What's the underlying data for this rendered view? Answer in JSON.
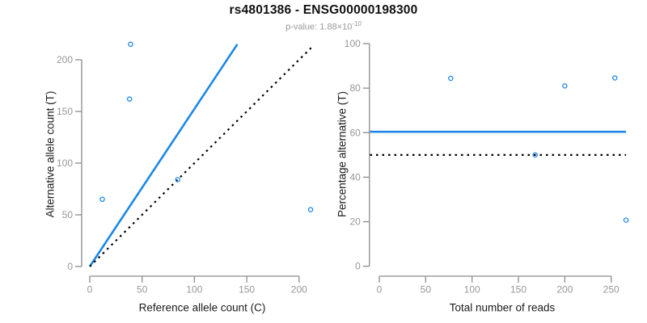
{
  "figure": {
    "title": "rs4801386 - ENSG00000198300",
    "pvalue_label": "p-value: ",
    "pvalue_value": "1.88×10",
    "pvalue_exponent": "-10"
  },
  "colors": {
    "accent_blue": "#1E87E5",
    "axis_gray": "#8C8C8C",
    "tick_label_gray": "#979797",
    "title_black": "#111111",
    "subtitle_gray": "#999999"
  },
  "chart_data": [
    {
      "type": "scatter",
      "panel": "left",
      "xlabel": "Reference allele count (C)",
      "ylabel": "Alternative allele count (T)",
      "xticks": [
        0,
        50,
        100,
        150,
        200
      ],
      "yticks": [
        0,
        50,
        100,
        150,
        200
      ],
      "xlim": [
        0,
        215
      ],
      "ylim": [
        0,
        215
      ],
      "grid": false,
      "legend": false,
      "marker": "open-circle",
      "points": [
        [
          12,
          65
        ],
        [
          38,
          162
        ],
        [
          39,
          215
        ],
        [
          84,
          84
        ],
        [
          211,
          55
        ]
      ],
      "lines": [
        {
          "name": "fitted-ratio-line",
          "style": "solid",
          "color": "#1E87E5",
          "from": [
            0,
            0
          ],
          "to": [
            141,
            215
          ]
        },
        {
          "name": "identity-line",
          "style": "dotted",
          "color": "#000000",
          "from": [
            0,
            0
          ],
          "to": [
            214,
            214
          ]
        }
      ]
    },
    {
      "type": "scatter",
      "panel": "right",
      "xlabel": "Total number of reads",
      "ylabel": "Percentage alternative (T)",
      "xticks": [
        0,
        50,
        100,
        150,
        200,
        250
      ],
      "yticks": [
        0,
        20,
        40,
        60,
        80,
        100
      ],
      "xlim": [
        0,
        266
      ],
      "ylim": [
        0,
        100
      ],
      "grid": false,
      "legend": false,
      "marker": "open-circle",
      "points": [
        [
          77,
          84.4
        ],
        [
          168,
          50
        ],
        [
          200,
          81
        ],
        [
          254,
          84.6
        ],
        [
          266,
          20.7
        ]
      ],
      "lines": [
        {
          "name": "mean-percentage-line",
          "style": "solid",
          "color": "#1E87E5",
          "from": [
            -10,
            60.4
          ],
          "to": [
            266,
            60.4
          ]
        },
        {
          "name": "fifty-percent-line",
          "style": "dotted",
          "color": "#000000",
          "from": [
            -10,
            50
          ],
          "to": [
            266,
            50
          ]
        }
      ]
    }
  ]
}
